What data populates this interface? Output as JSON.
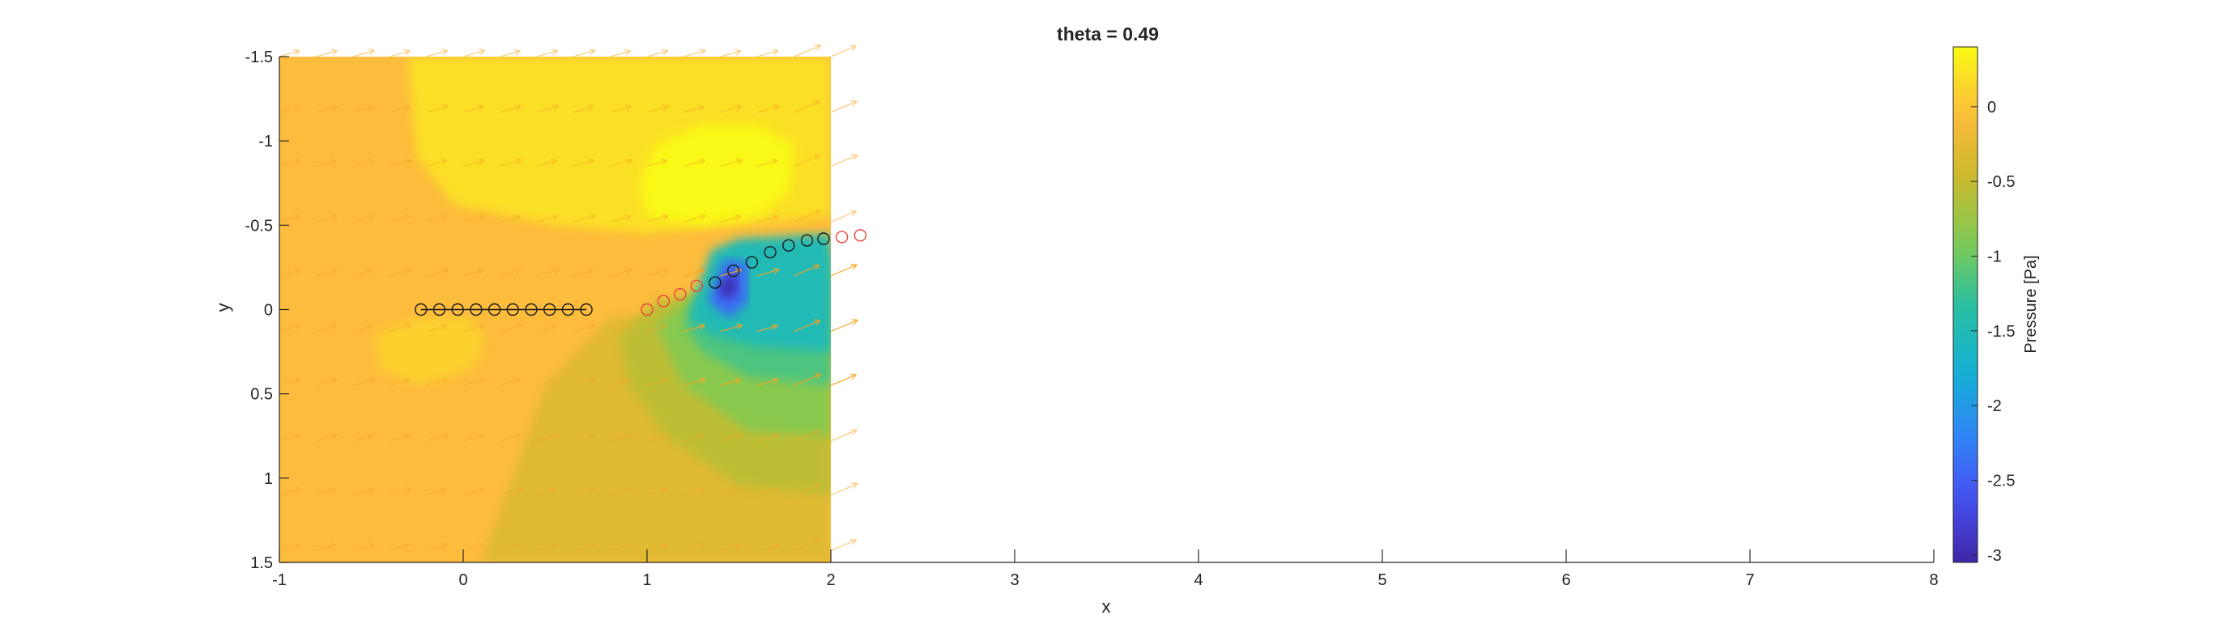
{
  "chart_data": {
    "type": "heatmap",
    "title": "theta = 0.49",
    "xlabel": "x",
    "ylabel": "y",
    "xlim": [
      -1,
      8
    ],
    "ylim": [
      -1.5,
      1.5
    ],
    "y_direction": "reversed",
    "grid": false,
    "x_ticks": [
      -1,
      0,
      1,
      2,
      3,
      4,
      5,
      6,
      7,
      8
    ],
    "y_ticks": [
      -1.5,
      -1,
      -0.5,
      0,
      0.5,
      1,
      1.5
    ],
    "field_extent": {
      "x": [
        -1,
        2
      ],
      "y": [
        -1.5,
        1.5
      ]
    },
    "colorbar": {
      "label": "Pressure [Pa]",
      "colormap": "parula",
      "range": [
        -3.05,
        0.4
      ],
      "ticks": [
        0,
        -0.5,
        -1,
        -1.5,
        -2,
        -2.5,
        -3
      ],
      "tick_labels": [
        "0",
        "-0.5",
        "-1",
        "-1.5",
        "-2",
        "-2.5",
        "-3"
      ]
    },
    "field_regions": [
      {
        "desc": "background",
        "value": -0.05
      },
      {
        "desc": "upper bright band",
        "value": 0.2
      },
      {
        "desc": "high pressure blob",
        "value": 0.38
      },
      {
        "desc": "left lower patch",
        "value": 0.1
      },
      {
        "desc": "lower right wedge",
        "value": -0.3
      },
      {
        "desc": "wake contour 1",
        "value": -0.55
      },
      {
        "desc": "wake contour 2",
        "value": -0.85
      },
      {
        "desc": "wake contour 3",
        "value": -1.15
      },
      {
        "desc": "wake contour 4",
        "value": -1.5
      },
      {
        "desc": "low pressure core",
        "value": -2.4
      },
      {
        "desc": "minimum",
        "value": -3.0
      }
    ],
    "series": [
      {
        "name": "",
        "type": "line-markers",
        "color": "#1a1a1a",
        "x": [
          -0.23,
          -0.13,
          -0.03,
          0.07,
          0.17,
          0.27,
          0.37,
          0.47,
          0.57,
          0.67
        ],
        "y": [
          0,
          0,
          0,
          0,
          0,
          0,
          0,
          0,
          0,
          0
        ]
      },
      {
        "name": "",
        "type": "markers",
        "color": "#1a1a1a",
        "x": [
          1.37,
          1.47,
          1.57,
          1.67,
          1.77,
          1.87,
          1.96
        ],
        "y": [
          -0.16,
          -0.23,
          -0.28,
          -0.34,
          -0.38,
          -0.41,
          -0.42
        ]
      },
      {
        "name": "",
        "type": "markers",
        "color": "#e8453c",
        "x": [
          1.0,
          1.09,
          1.18,
          1.27,
          2.06,
          2.16
        ],
        "y": [
          0.0,
          -0.05,
          -0.09,
          -0.14,
          -0.43,
          -0.44
        ]
      }
    ],
    "quiver": {
      "color": "#f5a623",
      "xs": [
        -1,
        -0.8,
        -0.6,
        -0.4,
        -0.2,
        0,
        0.2,
        0.4,
        0.6,
        0.8,
        1.0,
        1.2,
        1.4,
        1.6,
        1.8,
        2.0
      ],
      "ys": [
        -1.5,
        -1.17,
        -0.85,
        -0.52,
        -0.2,
        0.13,
        0.45,
        0.78,
        1.1,
        1.43
      ]
    }
  },
  "colors": {
    "axis": "#262626",
    "background": "#ffffff"
  }
}
